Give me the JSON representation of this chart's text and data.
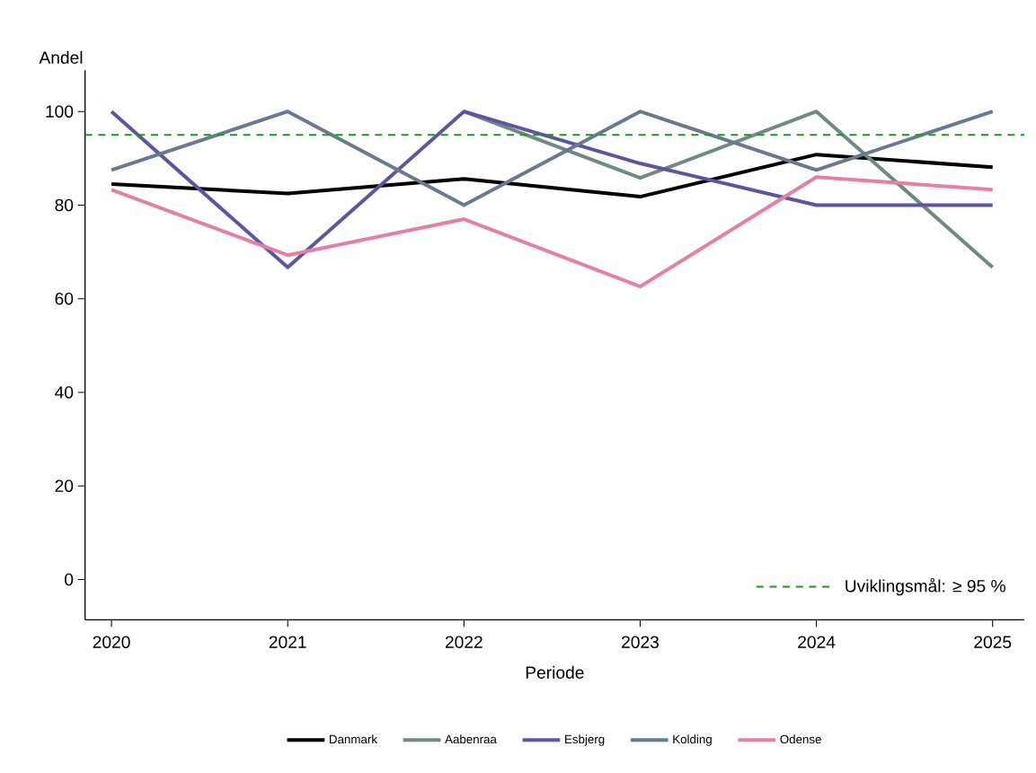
{
  "chart_data": {
    "type": "line",
    "xlabel": "Periode",
    "ylabel": "Andel",
    "categories": [
      "2020",
      "2021",
      "2022",
      "2023",
      "2024",
      "2025"
    ],
    "series": [
      {
        "name": "Danmark",
        "color": "#000000",
        "values": [
          84.5,
          82.5,
          85.6,
          81.8,
          90.8,
          88.1
        ]
      },
      {
        "name": "Aabenraa",
        "color": "#6f8a84",
        "values": [
          null,
          null,
          100,
          85.8,
          100,
          66.7
        ]
      },
      {
        "name": "Esbjerg",
        "color": "#5e55a0",
        "values": [
          100,
          66.7,
          100,
          88.9,
          80,
          80
        ]
      },
      {
        "name": "Kolding",
        "color": "#667a90",
        "values": [
          87.5,
          100,
          80,
          100,
          87.5,
          100
        ]
      },
      {
        "name": "Odense",
        "color": "#e57fa6",
        "values": [
          83.3,
          69.3,
          77,
          62.6,
          86,
          83.3
        ]
      }
    ],
    "ylim": [
      -8.6,
      108.8
    ],
    "yticks": [
      0,
      20,
      40,
      60,
      80,
      100
    ],
    "ref_lines": [
      {
        "axis": "y",
        "value": 95,
        "label": "Uviklingsmål: ≥ 95 %",
        "color": "#1a9a1a",
        "line_style": "dashed"
      }
    ],
    "legend": "bottom",
    "grid": false,
    "marker": "none",
    "line_style": "solid"
  }
}
